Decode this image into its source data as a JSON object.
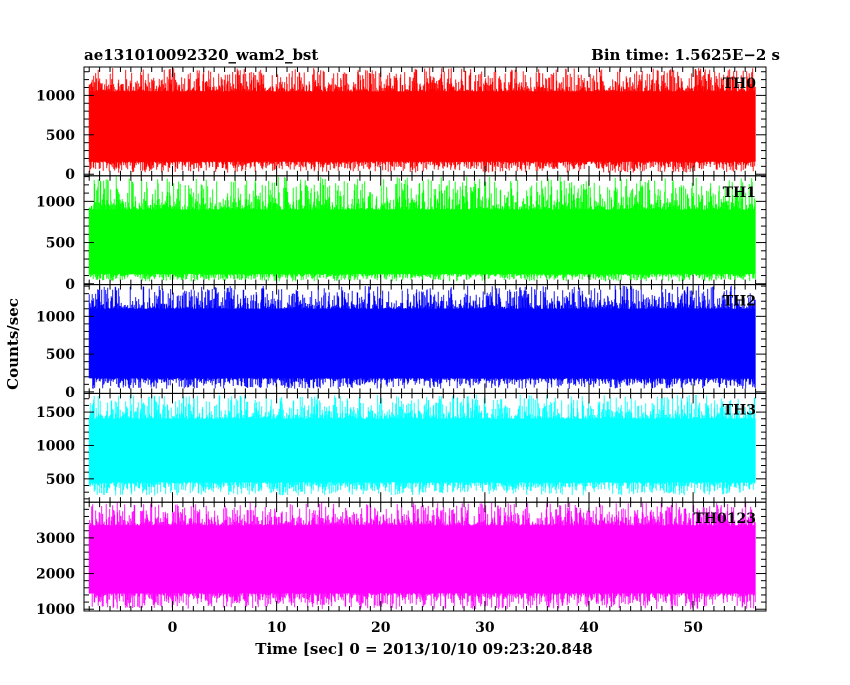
{
  "header": {
    "title": "ae131010092320_wam2_bst",
    "bin_time": "Bin time: 1.5625E−2 s"
  },
  "chart_data": {
    "type": "line",
    "xlabel": "Time [sec] 0 = 2013/10/10 09:23:20.848",
    "ylabel": "Counts/sec",
    "xlim": [
      -8.5,
      57
    ],
    "data_range": [
      -8.0,
      56.0
    ],
    "x_ticks": [
      0,
      10,
      20,
      30,
      40,
      50
    ],
    "x_tick_labels": [
      "0",
      "10",
      "20",
      "30",
      "40",
      "50"
    ],
    "grid": false,
    "series": [
      {
        "name": "TH0",
        "color": "#ff0000",
        "ylim": [
          -20,
          1360
        ],
        "ticks": [
          0,
          500,
          1000
        ],
        "tick_labels": [
          "0",
          "500",
          "1000"
        ],
        "mean": 650,
        "band_low": 160,
        "band_high": 1050,
        "min": 20,
        "max": 1350
      },
      {
        "name": "TH1",
        "color": "#00ff00",
        "ylim": [
          -10,
          1310
        ],
        "ticks": [
          0,
          500,
          1000
        ],
        "tick_labels": [
          "0",
          "500",
          "1000"
        ],
        "mean": 520,
        "band_low": 120,
        "band_high": 900,
        "min": 30,
        "max": 1300
      },
      {
        "name": "TH2",
        "color": "#0000ff",
        "ylim": [
          -20,
          1420
        ],
        "ticks": [
          0,
          500,
          1000
        ],
        "tick_labels": [
          "0",
          "500",
          "1000"
        ],
        "mean": 690,
        "band_low": 180,
        "band_high": 1100,
        "min": 40,
        "max": 1410
      },
      {
        "name": "TH3",
        "color": "#00ffff",
        "ylim": [
          150,
          1780
        ],
        "ticks": [
          500,
          1000,
          1500
        ],
        "tick_labels": [
          "500",
          "1000",
          "1500"
        ],
        "mean": 950,
        "band_low": 450,
        "band_high": 1400,
        "min": 250,
        "max": 1760
      },
      {
        "name": "TH0123",
        "color": "#ff00ff",
        "ylim": [
          950,
          4000
        ],
        "ticks": [
          1000,
          2000,
          3000
        ],
        "tick_labels": [
          "1000",
          "2000",
          "3000"
        ],
        "mean": 2500,
        "band_low": 1450,
        "band_high": 3350,
        "min": 1000,
        "max": 3990
      }
    ]
  }
}
